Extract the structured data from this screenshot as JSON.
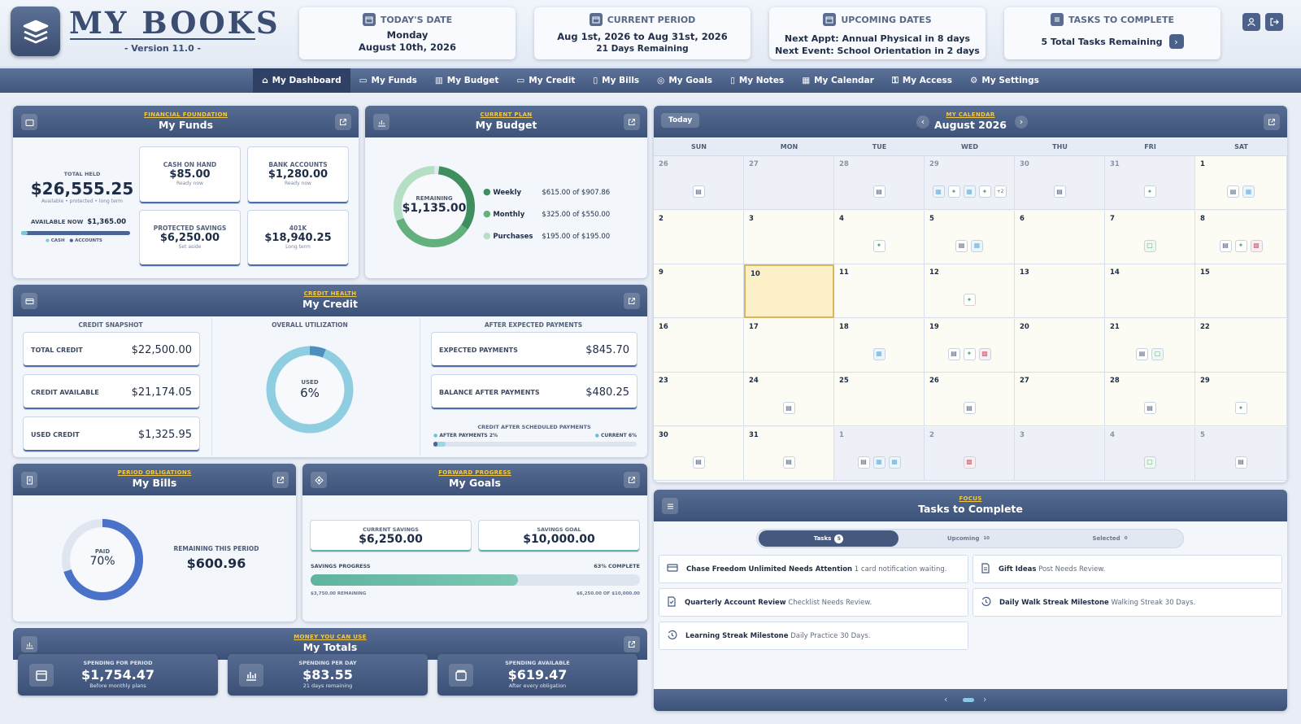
{
  "app": {
    "title": "MY BOOKS",
    "version": "- Version 11.0 -"
  },
  "header": {
    "today": {
      "label": "TODAY'S DATE",
      "line1": "Monday",
      "line2": "August 10th, 2026"
    },
    "period": {
      "label": "CURRENT PERIOD",
      "line1": "Aug 1st, 2026 to Aug 31st, 2026",
      "line2": "21 Days Remaining"
    },
    "upcoming": {
      "label": "UPCOMING DATES",
      "line1": "Next Appt: Annual Physical in 8 days",
      "line2": "Next Event: School Orientation in 2 days"
    },
    "tasks": {
      "label": "TASKS TO COMPLETE",
      "line1": "5 Total Tasks Remaining"
    }
  },
  "nav": [
    "My Dashboard",
    "My Funds",
    "My Budget",
    "My Credit",
    "My Bills",
    "My Goals",
    "My Notes",
    "My Calendar",
    "My Access",
    "My Settings"
  ],
  "funds": {
    "kicker": "FINANCIAL FOUNDATION",
    "title": "My Funds",
    "total_label": "TOTAL HELD",
    "total": "$26,555.25",
    "total_sub": "Available • protected • long term",
    "avail_label": "AVAILABLE NOW",
    "avail": "$1,365.00",
    "legend_cash": "CASH",
    "legend_accounts": "ACCOUNTS",
    "cash_share": 0.06,
    "boxes": [
      {
        "label": "CASH ON HAND",
        "value": "$85.00",
        "sub": "Ready now"
      },
      {
        "label": "BANK ACCOUNTS",
        "value": "$1,280.00",
        "sub": "Ready now"
      },
      {
        "label": "PROTECTED SAVINGS",
        "value": "$6,250.00",
        "sub": "Set aside"
      },
      {
        "label": "401K",
        "value": "$18,940.25",
        "sub": "Long term"
      }
    ]
  },
  "budget": {
    "kicker": "CURRENT PLAN",
    "title": "My Budget",
    "center_label": "REMAINING",
    "center_value": "$1,135.00",
    "ring": [
      0.324,
      0.348,
      0.328
    ],
    "ring_colors": [
      "#3e8f5d",
      "#62b07c",
      "#b5dfc2"
    ],
    "rows": [
      {
        "name": "Weekly",
        "value": "$615.00 of $907.86",
        "color": "#3e8f5d"
      },
      {
        "name": "Monthly",
        "value": "$325.00 of $550.00",
        "color": "#62b07c"
      },
      {
        "name": "Purchases",
        "value": "$195.00 of $195.00",
        "color": "#b5dfc2"
      }
    ]
  },
  "credit": {
    "kicker": "CREDIT HEALTH",
    "title": "My Credit",
    "snapshot_label": "CREDIT SNAPSHOT",
    "util_label": "OVERALL UTILIZATION",
    "after_label": "AFTER EXPECTED PAYMENTS",
    "rows": [
      {
        "label": "TOTAL CREDIT",
        "value": "$22,500.00"
      },
      {
        "label": "CREDIT AVAILABLE",
        "value": "$21,174.05"
      },
      {
        "label": "USED CREDIT",
        "value": "$1,325.95"
      }
    ],
    "used_label": "USED",
    "used_value": "6%",
    "used_fraction": 0.06,
    "after_rows": [
      {
        "label": "EXPECTED PAYMENTS",
        "value": "$845.70"
      },
      {
        "label": "BALANCE AFTER PAYMENTS",
        "value": "$480.25"
      }
    ],
    "sched_label": "CREDIT AFTER SCHEDULED PAYMENTS",
    "after_pay_label": "AFTER PAYMENTS",
    "after_pay_value": "2%",
    "current_label": "CURRENT",
    "current_value": "6%",
    "after_pay_fraction": 0.02,
    "current_fraction": 0.06
  },
  "bills": {
    "kicker": "PERIOD OBLIGATIONS",
    "title": "My Bills",
    "paid_label": "PAID",
    "paid_value": "70%",
    "paid_fraction": 0.7,
    "remain_label": "REMAINING THIS PERIOD",
    "remain_value": "$600.96"
  },
  "goals": {
    "kicker": "FORWARD PROGRESS",
    "title": "My Goals",
    "savings_label": "CURRENT SAVINGS",
    "savings": "$6,250.00",
    "goal_label": "SAVINGS GOAL",
    "goal": "$10,000.00",
    "progress_label": "SAVINGS PROGRESS",
    "progress_pct": "63% COMPLETE",
    "progress": 0.63,
    "remaining": "$3,750.00 REMAINING",
    "of": "$6,250.00 OF $10,000.00"
  },
  "totals": {
    "kicker": "MONEY YOU CAN USE",
    "title": "My Totals",
    "cards": [
      {
        "label": "SPENDING FOR PERIOD",
        "value": "$1,754.47",
        "sub": "Before monthly plans"
      },
      {
        "label": "SPENDING PER DAY",
        "value": "$83.55",
        "sub": "21 days remaining"
      },
      {
        "label": "SPENDING AVAILABLE",
        "value": "$619.47",
        "sub": "After every obligation"
      }
    ]
  },
  "calendar": {
    "kicker": "MY CALENDAR",
    "title": "August 2026",
    "today_btn": "Today",
    "days": [
      "SUN",
      "MON",
      "TUE",
      "WED",
      "THU",
      "FRI",
      "SAT"
    ],
    "weeks": [
      [
        {
          "d": "26",
          "o": 1,
          "e": [
            "d"
          ]
        },
        {
          "d": "27",
          "o": 1,
          "e": []
        },
        {
          "d": "28",
          "o": 1,
          "e": [
            "d"
          ]
        },
        {
          "d": "29",
          "o": 1,
          "e": [
            "n",
            "s",
            "n",
            "s",
            "+2"
          ]
        },
        {
          "d": "30",
          "o": 1,
          "e": [
            "d"
          ]
        },
        {
          "d": "31",
          "o": 1,
          "e": [
            "s"
          ]
        },
        {
          "d": "1",
          "e": [
            "d",
            "n"
          ]
        }
      ],
      [
        {
          "d": "2",
          "e": []
        },
        {
          "d": "3",
          "e": []
        },
        {
          "d": "4",
          "e": [
            "s"
          ]
        },
        {
          "d": "5",
          "e": [
            "d",
            "n"
          ]
        },
        {
          "d": "6",
          "e": []
        },
        {
          "d": "7",
          "e": [
            "g"
          ]
        },
        {
          "d": "8",
          "e": [
            "d",
            "s",
            "r"
          ]
        }
      ],
      [
        {
          "d": "9",
          "e": []
        },
        {
          "d": "10",
          "t": 1,
          "e": []
        },
        {
          "d": "11",
          "e": []
        },
        {
          "d": "12",
          "e": [
            "s"
          ]
        },
        {
          "d": "13",
          "e": []
        },
        {
          "d": "14",
          "e": []
        },
        {
          "d": "15",
          "e": []
        }
      ],
      [
        {
          "d": "16",
          "e": []
        },
        {
          "d": "17",
          "e": []
        },
        {
          "d": "18",
          "e": [
            "n"
          ]
        },
        {
          "d": "19",
          "e": [
            "d",
            "s",
            "r"
          ]
        },
        {
          "d": "20",
          "e": []
        },
        {
          "d": "21",
          "e": [
            "d",
            "g"
          ]
        },
        {
          "d": "22",
          "e": []
        }
      ],
      [
        {
          "d": "23",
          "e": []
        },
        {
          "d": "24",
          "e": [
            "d"
          ]
        },
        {
          "d": "25",
          "e": []
        },
        {
          "d": "26",
          "e": [
            "d"
          ]
        },
        {
          "d": "27",
          "e": []
        },
        {
          "d": "28",
          "e": [
            "d"
          ]
        },
        {
          "d": "29",
          "e": [
            "s"
          ]
        }
      ],
      [
        {
          "d": "30",
          "e": [
            "d"
          ]
        },
        {
          "d": "31",
          "e": [
            "d"
          ]
        },
        {
          "d": "1",
          "o": 1,
          "e": [
            "d",
            "n",
            "n"
          ]
        },
        {
          "d": "2",
          "o": 1,
          "e": [
            "r"
          ]
        },
        {
          "d": "3",
          "o": 1,
          "e": []
        },
        {
          "d": "4",
          "o": 1,
          "e": [
            "g"
          ]
        },
        {
          "d": "5",
          "o": 1,
          "e": [
            "d"
          ]
        }
      ]
    ]
  },
  "tasks": {
    "kicker": "FOCUS",
    "title": "Tasks to Complete",
    "tab_tasks": "Tasks",
    "tab_tasks_count": "5",
    "tab_upcoming": "Upcoming",
    "tab_upcoming_count": "10",
    "tab_selected": "Selected",
    "tab_selected_count": "0",
    "items": [
      {
        "icon": "card",
        "title": "Chase Freedom Unlimited Needs Attention",
        "desc": "1 card notification waiting."
      },
      {
        "icon": "doc",
        "title": "Gift Ideas",
        "desc": "Post Needs Review."
      },
      {
        "icon": "check",
        "title": "Quarterly Account Review",
        "desc": "Checklist Needs Review."
      },
      {
        "icon": "clock",
        "title": "Daily Walk Streak Milestone",
        "desc": "Walking Streak 30 Days."
      },
      {
        "icon": "clock",
        "title": "Learning Streak Milestone",
        "desc": "Daily Practice 30 Days."
      }
    ]
  }
}
